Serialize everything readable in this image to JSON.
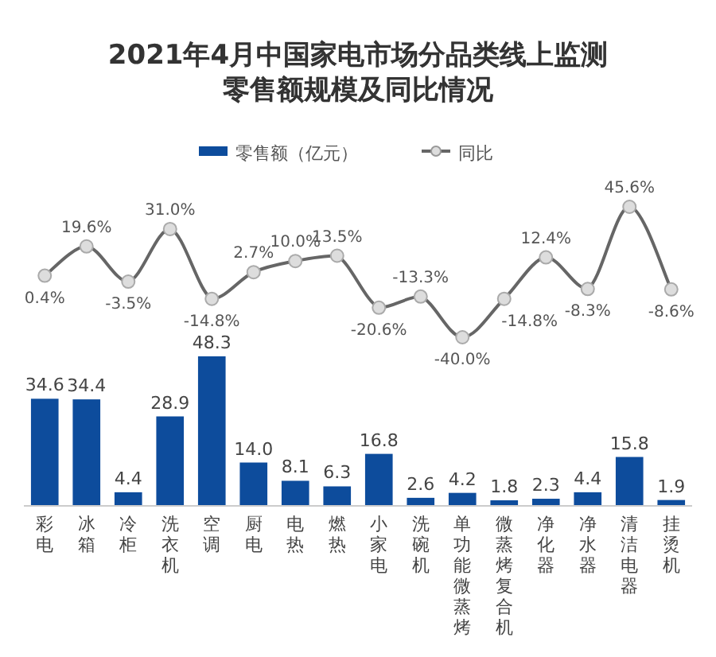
{
  "chart_data": [
    {
      "type": "line",
      "title": "2021年4月中国家电市场分品类线上监测零售额规模及同比情况",
      "categories": [
        null,
        null,
        null,
        null,
        null,
        null,
        null,
        null,
        null,
        null,
        null,
        null,
        null,
        null,
        null,
        null
      ],
      "series": [
        {
          "name": "同比",
          "color": "#666666",
          "values": [
            0.4,
            19.6,
            -3.5,
            31.0,
            -14.8,
            2.7,
            10.0,
            13.5,
            -20.6,
            -13.3,
            -40.0,
            -14.8,
            12.4,
            -8.3,
            45.6,
            -8.6
          ],
          "value_labels": [
            "0.4%",
            "19.6%",
            "-3.5%",
            "31.0%",
            "-14.8%",
            "2.7%",
            "10.0%",
            "13.5%",
            "-20.6%",
            "-13.3%",
            "-40.0%",
            "-14.8%",
            "12.4%",
            "-8.3%",
            "45.6%",
            "-8.6%"
          ]
        }
      ],
      "legend": "top",
      "marker": "circle"
    },
    {
      "type": "bar",
      "categories": [
        "彩电",
        "冰箱",
        "冷柜",
        "洗衣机",
        "空调",
        "厨电",
        "电热",
        "燃热",
        "小家电",
        "洗碗机",
        "单功能微蒸烤",
        "微蒸烤复合机",
        "净化器",
        "净水器",
        "清洁电器",
        "挂烫机"
      ],
      "series": [
        {
          "name": "零售额（亿元）",
          "color": "#0d4c9c",
          "values": [
            34.6,
            34.4,
            4.4,
            28.9,
            48.3,
            14.0,
            8.1,
            6.3,
            16.8,
            2.6,
            4.2,
            1.8,
            2.3,
            4.4,
            15.8,
            1.9
          ],
          "value_labels": [
            "34.6",
            "34.4",
            "4.4",
            "28.9",
            "48.3",
            "14.0",
            "8.1",
            "6.3",
            "16.8",
            "2.6",
            "4.2",
            "1.8",
            "2.3",
            "4.4",
            "15.8",
            "1.9"
          ]
        }
      ],
      "legend": "top"
    }
  ]
}
